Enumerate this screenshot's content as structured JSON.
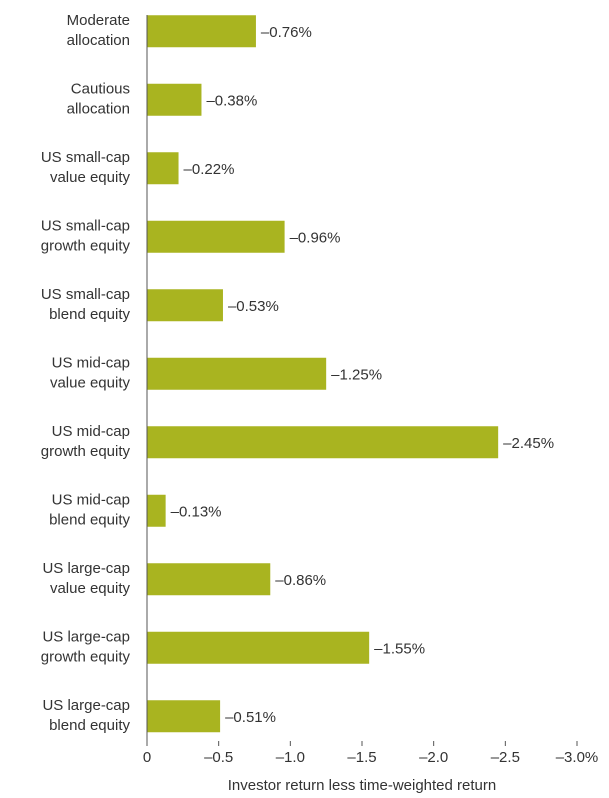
{
  "chart_data": {
    "type": "bar",
    "orientation": "horizontal",
    "categories": [
      [
        "Moderate",
        "allocation"
      ],
      [
        "Cautious",
        "allocation"
      ],
      [
        "US small-cap",
        "value equity"
      ],
      [
        "US small-cap",
        "growth equity"
      ],
      [
        "US small-cap",
        "blend equity"
      ],
      [
        "US mid-cap",
        "value equity"
      ],
      [
        "US mid-cap",
        "growth equity"
      ],
      [
        "US mid-cap",
        "blend equity"
      ],
      [
        "US large-cap",
        "value equity"
      ],
      [
        "US large-cap",
        "growth equity"
      ],
      [
        "US large-cap",
        "blend equity"
      ]
    ],
    "values": [
      -0.76,
      -0.38,
      -0.22,
      -0.96,
      -0.53,
      -1.25,
      -2.45,
      -0.13,
      -0.86,
      -1.55,
      -0.51
    ],
    "value_labels": [
      "–0.76%",
      "–0.38%",
      "–0.22%",
      "–0.96%",
      "–0.53%",
      "–1.25%",
      "–2.45%",
      "–0.13%",
      "–0.86%",
      "–1.55%",
      "–0.51%"
    ],
    "color": "#a9b420",
    "xlabel": "Investor return less time-weighted return",
    "xlim": [
      0,
      -3.0
    ],
    "xticks": [
      0,
      {
        "value": -0.5,
        "label": "–0.5"
      },
      {
        "value": -1.0,
        "label": "–1.0"
      },
      {
        "value": -1.5,
        "label": "–1.5"
      },
      {
        "value": -2.0,
        "label": "–2.0"
      },
      {
        "value": -2.5,
        "label": "–2.5"
      },
      {
        "value": -3.0,
        "label": "–3.0%"
      }
    ]
  }
}
